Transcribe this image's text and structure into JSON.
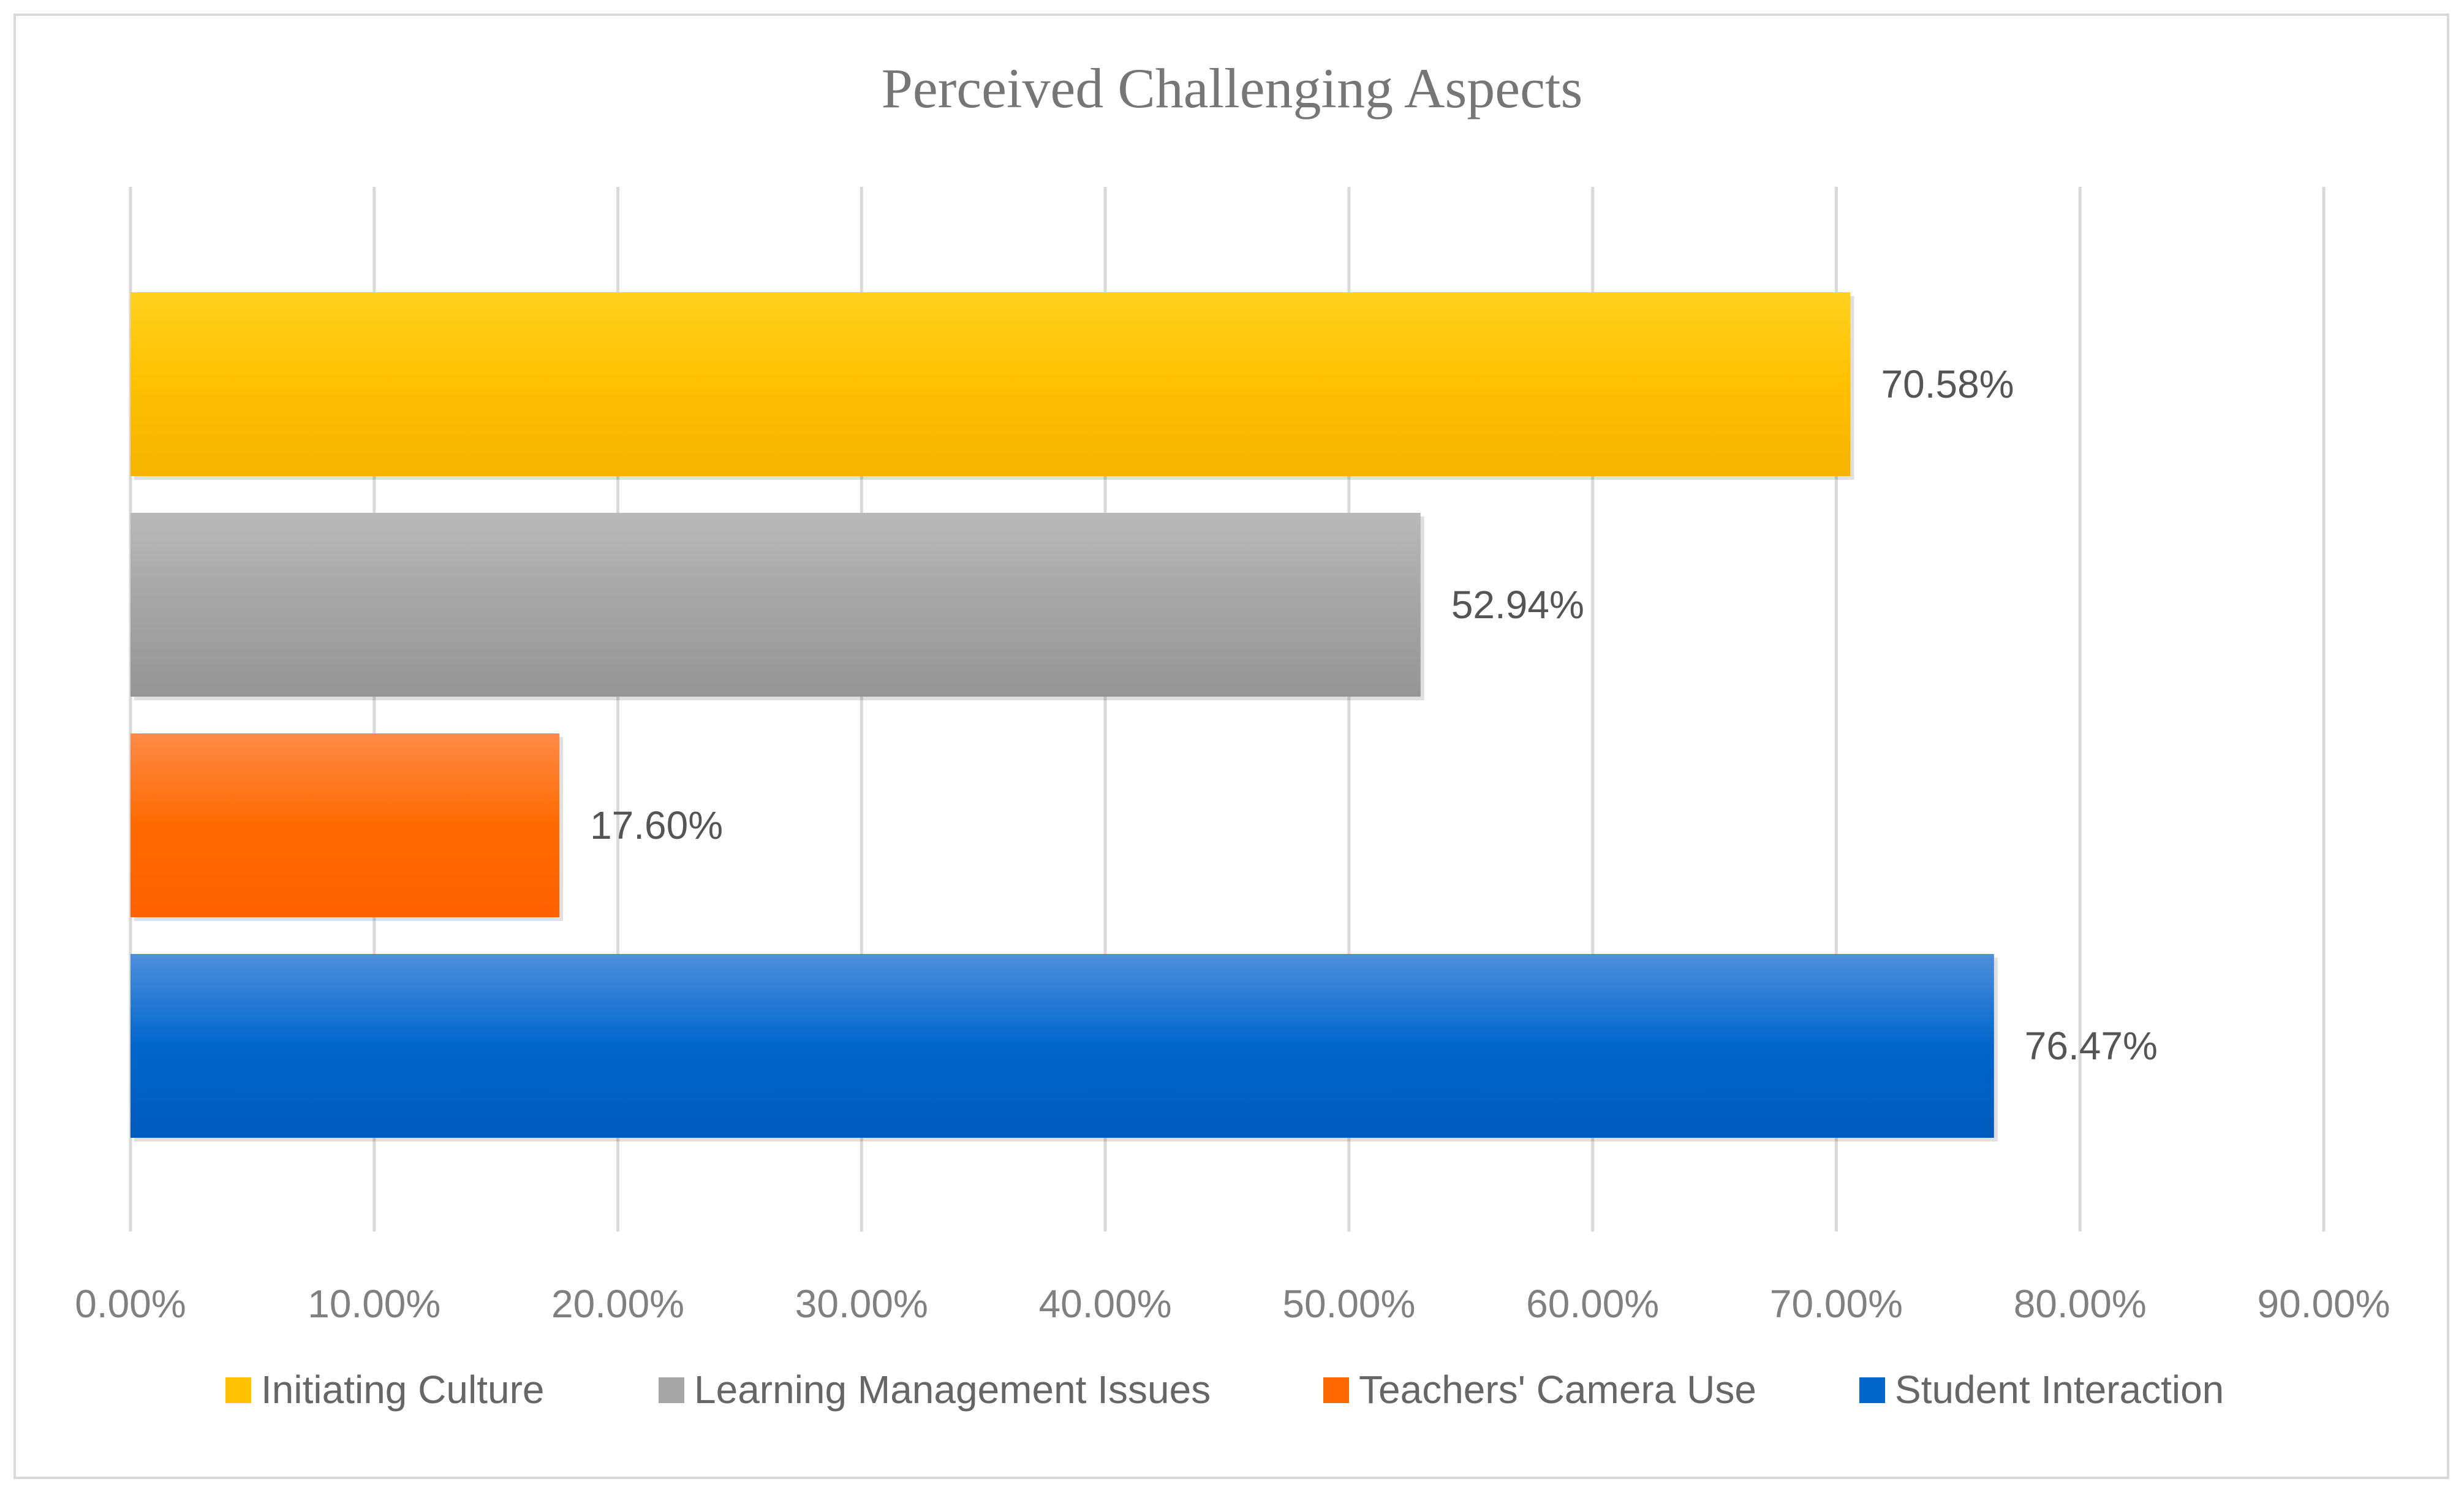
{
  "chart_data": {
    "type": "bar",
    "orientation": "horizontal",
    "title": "Perceived Challenging Aspects",
    "xlabel": "",
    "ylabel": "",
    "xlim": [
      0,
      90
    ],
    "grid": true,
    "legend_position": "bottom",
    "ticks": [
      "0.00%",
      "10.00%",
      "20.00%",
      "30.00%",
      "40.00%",
      "50.00%",
      "60.00%",
      "70.00%",
      "80.00%",
      "90.00%"
    ],
    "series": [
      {
        "name": "Initiating Culture",
        "value": 70.58,
        "label": "70.58%",
        "color": "#ffc000",
        "color_light": "#ffd21f",
        "color_dark": "#f5b400"
      },
      {
        "name": "Learning Management Issues",
        "value": 52.94,
        "label": "52.94%",
        "color": "#a5a5a5",
        "color_light": "#b9b9b9",
        "color_dark": "#959595"
      },
      {
        "name": "Teachers' Camera Use",
        "value": 17.6,
        "label": "17.60%",
        "color": "#ff6a00",
        "color_light": "#ff8a48",
        "color_dark": "#ff6000"
      },
      {
        "name": "Student Interaction",
        "value": 76.47,
        "label": "76.47%",
        "color": "#0066cc",
        "color_light": "#4f8fdb",
        "color_dark": "#005bbd"
      }
    ]
  }
}
